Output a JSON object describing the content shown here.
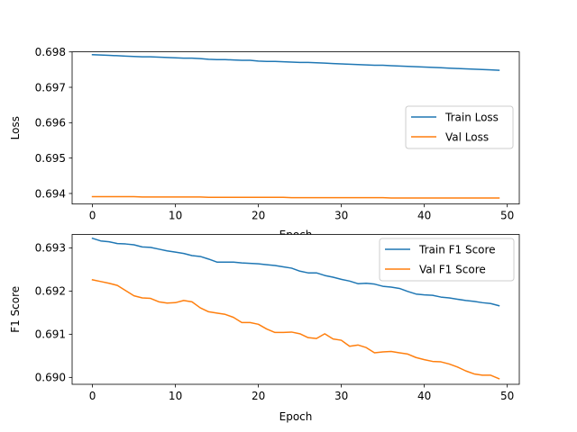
{
  "chart_data": [
    {
      "type": "line",
      "title": "",
      "xlabel": "Epoch",
      "ylabel": "Loss",
      "xlim": [
        -2.45,
        51.45
      ],
      "ylim": [
        0.69375,
        0.69805
      ],
      "xticks": [
        "0",
        "10",
        "20",
        "30",
        "40",
        "50"
      ],
      "yticks": [
        "0.694",
        "0.695",
        "0.696",
        "0.697",
        "0.698"
      ],
      "legend_position": "center-right",
      "x": [
        0,
        1,
        2,
        3,
        4,
        5,
        6,
        7,
        8,
        9,
        10,
        11,
        12,
        13,
        14,
        15,
        16,
        17,
        18,
        19,
        20,
        21,
        22,
        23,
        24,
        25,
        26,
        27,
        28,
        29,
        30,
        31,
        32,
        33,
        34,
        35,
        36,
        37,
        38,
        39,
        40,
        41,
        42,
        43,
        44,
        45,
        46,
        47,
        48,
        49
      ],
      "series": [
        {
          "name": "Train Loss",
          "color": "#1f77b4",
          "values": [
            0.69797,
            0.69796,
            0.69795,
            0.69794,
            0.69793,
            0.69792,
            0.69791,
            0.69791,
            0.6979,
            0.69789,
            0.69788,
            0.69787,
            0.69787,
            0.69786,
            0.69784,
            0.69783,
            0.69783,
            0.69782,
            0.69781,
            0.69781,
            0.69779,
            0.69778,
            0.69778,
            0.69777,
            0.69776,
            0.69775,
            0.69775,
            0.69774,
            0.69773,
            0.69772,
            0.69771,
            0.6977,
            0.69769,
            0.69768,
            0.69767,
            0.69767,
            0.69766,
            0.69765,
            0.69764,
            0.69763,
            0.69762,
            0.69761,
            0.6976,
            0.69759,
            0.69758,
            0.69757,
            0.69756,
            0.69755,
            0.69754,
            0.69753
          ]
        },
        {
          "name": "Val Loss",
          "color": "#ff7f0e",
          "values": [
            0.69396,
            0.69396,
            0.69396,
            0.69396,
            0.69396,
            0.69396,
            0.69395,
            0.69395,
            0.69395,
            0.69395,
            0.69395,
            0.69395,
            0.69395,
            0.69395,
            0.69394,
            0.69394,
            0.69394,
            0.69394,
            0.69394,
            0.69394,
            0.69394,
            0.69394,
            0.69394,
            0.69394,
            0.69393,
            0.69393,
            0.69393,
            0.69393,
            0.69393,
            0.69393,
            0.69393,
            0.69393,
            0.69393,
            0.69393,
            0.69393,
            0.69393,
            0.69392,
            0.69392,
            0.69392,
            0.69392,
            0.69392,
            0.69392,
            0.69392,
            0.69392,
            0.69392,
            0.69392,
            0.69392,
            0.69392,
            0.69392,
            0.69392
          ]
        }
      ]
    },
    {
      "type": "line",
      "title": "",
      "xlabel": "Epoch",
      "ylabel": "F1 Score",
      "xlim": [
        -2.45,
        51.45
      ],
      "ylim": [
        0.68985,
        0.69332
      ],
      "xticks": [
        "0",
        "10",
        "20",
        "30",
        "40",
        "50"
      ],
      "yticks": [
        "0.690",
        "0.691",
        "0.692",
        "0.693"
      ],
      "legend_position": "upper-right",
      "x": [
        0,
        1,
        2,
        3,
        4,
        5,
        6,
        7,
        8,
        9,
        10,
        11,
        12,
        13,
        14,
        15,
        16,
        17,
        18,
        19,
        20,
        21,
        22,
        23,
        24,
        25,
        26,
        27,
        28,
        29,
        30,
        31,
        32,
        33,
        34,
        35,
        36,
        37,
        38,
        39,
        40,
        41,
        42,
        43,
        44,
        45,
        46,
        47,
        48,
        49
      ],
      "series": [
        {
          "name": "Train F1 Score",
          "color": "#1f77b4",
          "values": [
            0.69323,
            0.69317,
            0.69315,
            0.69311,
            0.6931,
            0.69308,
            0.69303,
            0.69302,
            0.69298,
            0.69294,
            0.69291,
            0.69288,
            0.69283,
            0.69281,
            0.69275,
            0.69268,
            0.69268,
            0.69268,
            0.69266,
            0.69265,
            0.69264,
            0.69262,
            0.6926,
            0.69257,
            0.69254,
            0.69247,
            0.69243,
            0.69243,
            0.69237,
            0.69233,
            0.69228,
            0.69224,
            0.69218,
            0.69219,
            0.69217,
            0.69212,
            0.6921,
            0.69207,
            0.692,
            0.69194,
            0.69192,
            0.69191,
            0.69187,
            0.69185,
            0.69182,
            0.69179,
            0.69177,
            0.69174,
            0.69172,
            0.69167
          ]
        },
        {
          "name": "Val F1 Score",
          "color": "#ff7f0e",
          "values": [
            0.69227,
            0.69223,
            0.69219,
            0.69214,
            0.69202,
            0.6919,
            0.69185,
            0.69184,
            0.69176,
            0.69173,
            0.69174,
            0.69179,
            0.69176,
            0.69162,
            0.69153,
            0.6915,
            0.69147,
            0.6914,
            0.69128,
            0.69128,
            0.69124,
            0.69113,
            0.69105,
            0.69105,
            0.69106,
            0.69102,
            0.69093,
            0.69091,
            0.69102,
            0.6909,
            0.69087,
            0.69073,
            0.69076,
            0.6907,
            0.69058,
            0.6906,
            0.69061,
            0.69058,
            0.69055,
            0.69047,
            0.69042,
            0.69038,
            0.69037,
            0.69032,
            0.69025,
            0.69016,
            0.69009,
            0.69006,
            0.69006,
            0.68998
          ]
        }
      ]
    }
  ]
}
